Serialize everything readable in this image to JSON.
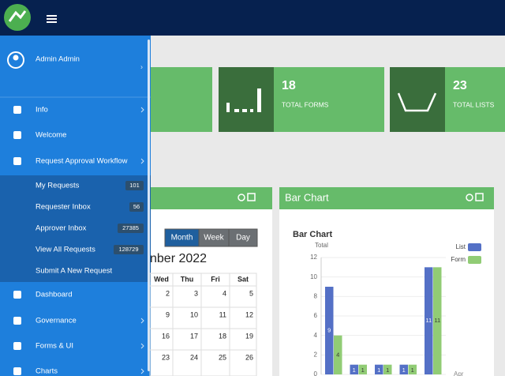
{
  "sidebar": {
    "user": "Admin Admin",
    "menu": [
      {
        "label": "Info"
      },
      {
        "label": "Welcome"
      },
      {
        "label": "Request Approval Workflow"
      }
    ],
    "submenu": [
      {
        "label": "My Requests",
        "badge": 101
      },
      {
        "label": "Requester Inbox",
        "badge": 56
      },
      {
        "label": "Approver Inbox",
        "badge": 27385
      },
      {
        "label": "View All Requests",
        "badge": 128729
      },
      {
        "label": "Submit A New Request"
      }
    ],
    "menu2": [
      {
        "label": "Dashboard"
      },
      {
        "label": "Governance"
      },
      {
        "label": "Forms & UI"
      },
      {
        "label": "Charts"
      }
    ]
  },
  "stats": [
    {
      "value": 18,
      "label": "TOTAL FORMS"
    },
    {
      "value": 23,
      "label": "TOTAL LISTS"
    }
  ],
  "calendar": {
    "views": [
      "Month",
      "Week",
      "Day"
    ],
    "title": "nber 2022",
    "weekdays": [
      "Wed",
      "Thu",
      "Fri",
      "Sat"
    ],
    "weeks": [
      [
        2,
        3,
        4,
        5
      ],
      [
        9,
        10,
        11,
        12
      ],
      [
        16,
        17,
        18,
        19
      ],
      [
        23,
        24,
        25,
        26
      ]
    ]
  },
  "bar_chart": {
    "panel_title": "Bar Chart",
    "title": "Bar Chart",
    "y_label": "Total",
    "x_label": "Apr",
    "ylim": [
      0,
      12
    ],
    "yticks": [
      0,
      2,
      4,
      6,
      8,
      10,
      12
    ],
    "series": [
      {
        "name": "List",
        "color": "#5470c6",
        "values": [
          9,
          1,
          1,
          1,
          11
        ]
      },
      {
        "name": "Form",
        "color": "#91cc75",
        "values": [
          4,
          1,
          1,
          1,
          11
        ]
      }
    ]
  }
}
